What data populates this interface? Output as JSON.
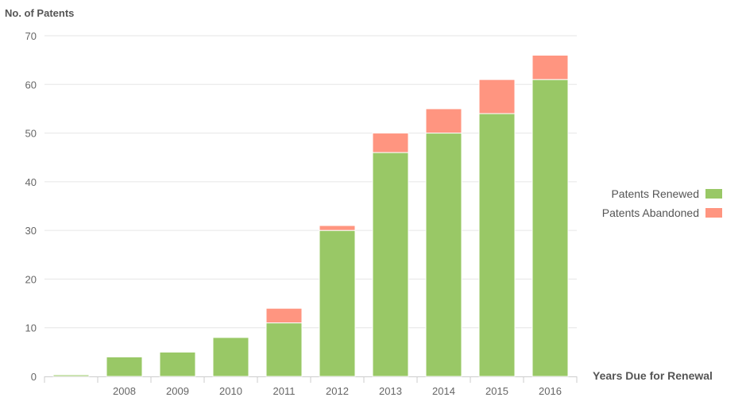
{
  "chart_data": {
    "type": "bar",
    "stacked": true,
    "ylabel": "No. of Patents",
    "xlabel": "Years Due for Renewal",
    "ylim": [
      0,
      70
    ],
    "yticks": [
      0,
      10,
      20,
      30,
      40,
      50,
      60,
      70
    ],
    "grid": true,
    "legend_position": "right",
    "categories": [
      "",
      "2008",
      "2009",
      "2010",
      "2011",
      "2012",
      "2013",
      "2014",
      "2015",
      "2016"
    ],
    "series": [
      {
        "name": "Patents Renewed",
        "color": "#99c866",
        "values": [
          0,
          4,
          5,
          8,
          11,
          30,
          46,
          50,
          54,
          61
        ]
      },
      {
        "name": "Patents Abandoned",
        "color": "#ff9580",
        "values": [
          0,
          0,
          0,
          0,
          3,
          1,
          4,
          5,
          7,
          5
        ]
      }
    ]
  }
}
